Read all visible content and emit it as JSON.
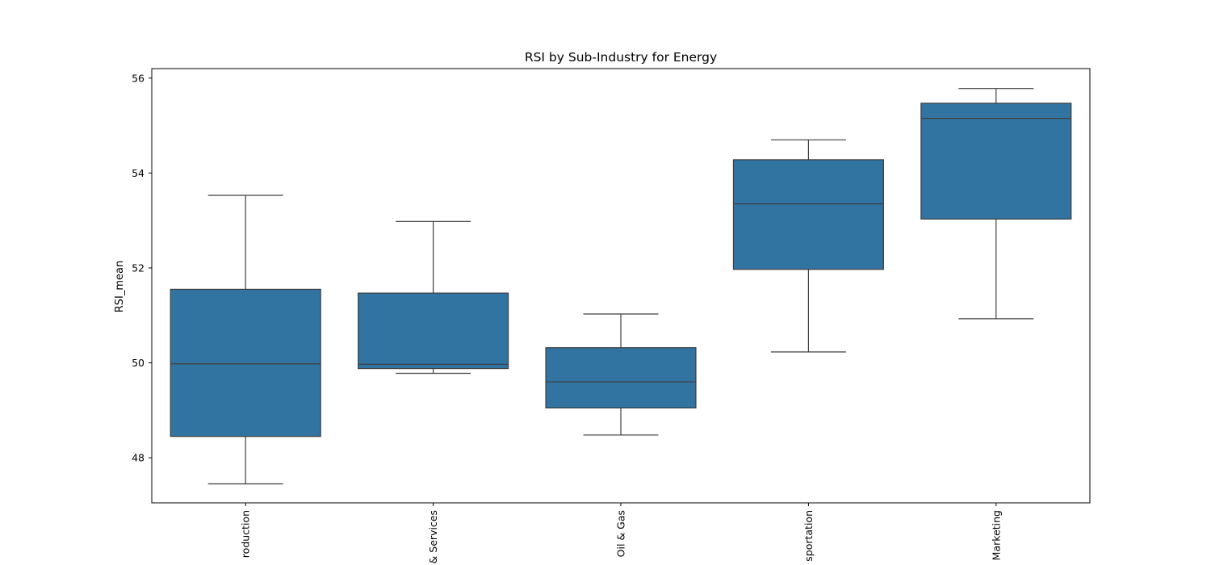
{
  "chart_data": {
    "type": "box",
    "title": "RSI by Sub-Industry for Energy",
    "xlabel": "",
    "ylabel": "RSI_mean",
    "ylim": [
      47.05,
      56.2
    ],
    "yticks": [
      48,
      50,
      52,
      54,
      56
    ],
    "grid": false,
    "box_color": "#3274a1",
    "line_color": "#3d3d3d",
    "categories": [
      {
        "label": "roduction",
        "whisker_low": 47.45,
        "q1": 48.45,
        "median": 49.98,
        "q3": 51.55,
        "whisker_high": 53.53
      },
      {
        "label": "& Services",
        "whisker_low": 49.78,
        "q1": 49.88,
        "median": 49.97,
        "q3": 51.47,
        "whisker_high": 52.98
      },
      {
        "label": "Oil & Gas",
        "whisker_low": 48.48,
        "q1": 49.05,
        "median": 49.6,
        "q3": 50.32,
        "whisker_high": 51.03
      },
      {
        "label": "sportation",
        "whisker_low": 50.23,
        "q1": 51.97,
        "median": 53.35,
        "q3": 54.28,
        "whisker_high": 54.7
      },
      {
        "label": "Marketing",
        "whisker_low": 50.93,
        "q1": 53.03,
        "median": 55.15,
        "q3": 55.47,
        "whisker_high": 55.78
      }
    ]
  }
}
